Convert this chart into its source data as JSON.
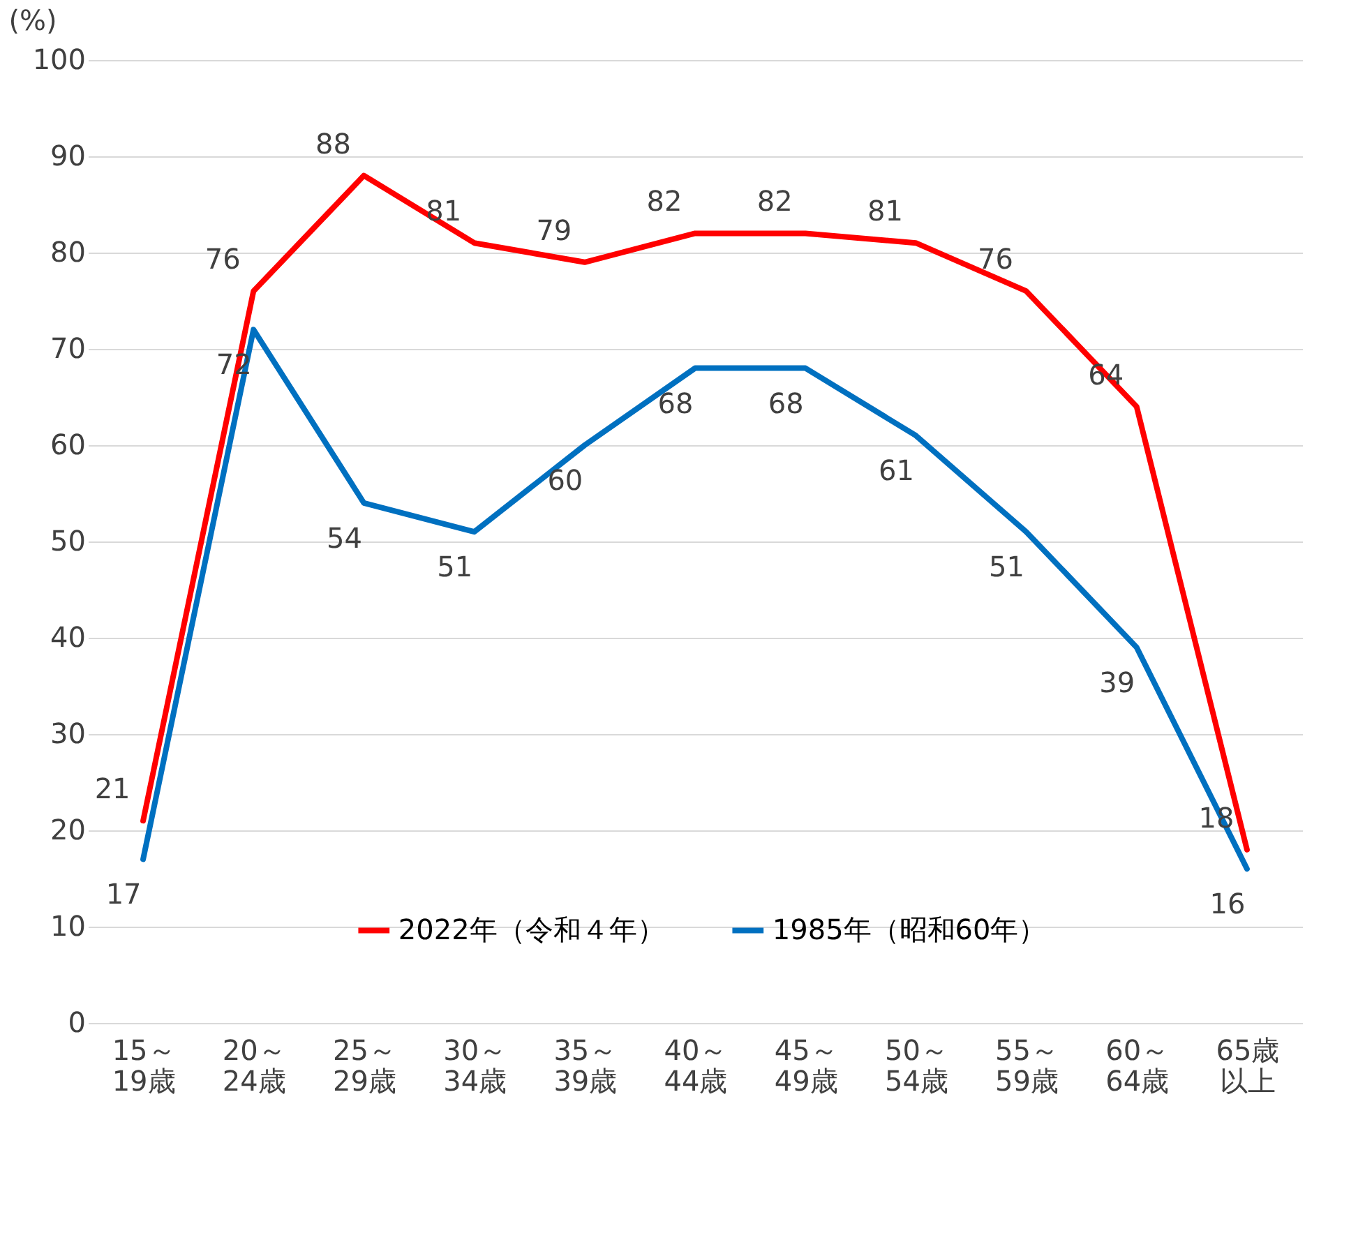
{
  "chart_data": {
    "type": "line",
    "ylabel": "(%)",
    "categories": [
      "15～19歳",
      "20～24歳",
      "25～29歳",
      "30～34歳",
      "35～39歳",
      "40～44歳",
      "45～49歳",
      "50～54歳",
      "55～59歳",
      "60～64歳",
      "65歳以上"
    ],
    "series": [
      {
        "name": "2022年（令和４年）",
        "color": "#ff0000",
        "values": [
          21,
          76,
          88,
          81,
          79,
          82,
          82,
          81,
          76,
          64,
          18
        ]
      },
      {
        "name": "1985年（昭和60年）",
        "color": "#0070c0",
        "values": [
          17,
          72,
          54,
          51,
          60,
          68,
          68,
          61,
          51,
          39,
          16
        ]
      }
    ],
    "ylim": [
      0,
      100
    ],
    "yticks": [
      0,
      10,
      20,
      30,
      40,
      50,
      60,
      70,
      80,
      90,
      100
    ],
    "grid": "y",
    "legend": "bottom",
    "data_labels": true,
    "marker": "none",
    "line_style": "solid"
  }
}
